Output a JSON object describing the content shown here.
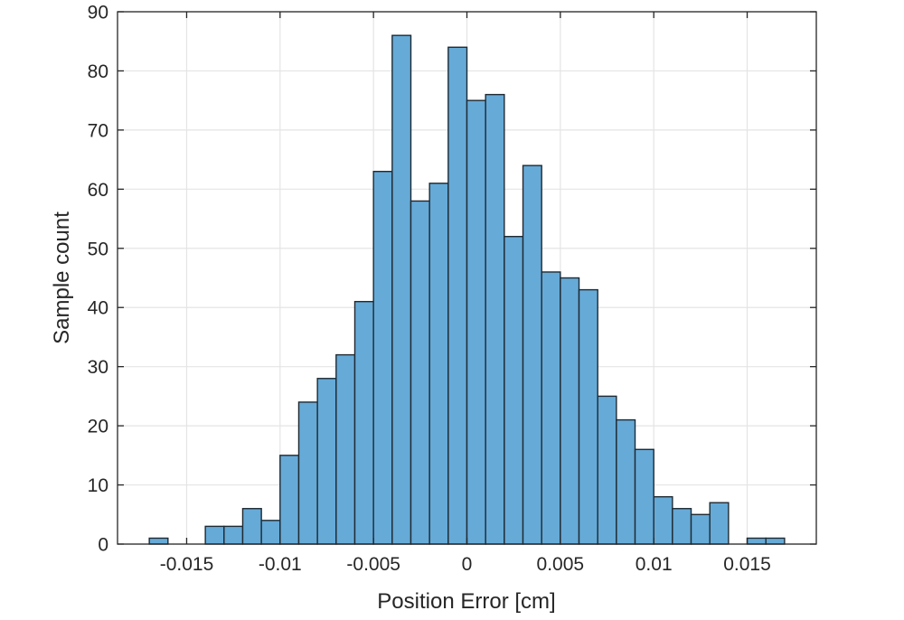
{
  "figure": {
    "background": "#ffffff"
  },
  "chart_data": {
    "type": "bar",
    "subtype": "histogram",
    "title": "",
    "xlabel": "Position Error [cm]",
    "ylabel": "Sample count",
    "bin_width": 0.001,
    "bin_edges": [
      -0.017,
      -0.016,
      -0.015,
      -0.014,
      -0.013,
      -0.012,
      -0.011,
      -0.01,
      -0.009,
      -0.008,
      -0.007,
      -0.006,
      -0.005,
      -0.004,
      -0.003,
      -0.002,
      -0.001,
      0,
      0.001,
      0.002,
      0.003,
      0.004,
      0.005,
      0.006,
      0.007,
      0.008,
      0.009,
      0.01,
      0.011,
      0.012,
      0.013,
      0.014,
      0.015,
      0.016,
      0.017
    ],
    "values": [
      1,
      0,
      0,
      3,
      3,
      6,
      4,
      15,
      24,
      28,
      32,
      41,
      63,
      86,
      58,
      61,
      84,
      75,
      76,
      52,
      64,
      46,
      45,
      43,
      25,
      21,
      16,
      8,
      6,
      5,
      7,
      0,
      1,
      1
    ],
    "xlim": [
      -0.0187,
      0.0187
    ],
    "ylim": [
      0,
      90
    ],
    "xticks": [
      -0.015,
      -0.01,
      -0.005,
      0,
      0.005,
      0.01,
      0.015
    ],
    "xtick_labels": [
      "-0.015",
      "-0.01",
      "-0.005",
      "0",
      "0.005",
      "0.01",
      "0.015"
    ],
    "yticks": [
      0,
      10,
      20,
      30,
      40,
      50,
      60,
      70,
      80,
      90
    ],
    "ytick_labels": [
      "0",
      "10",
      "20",
      "30",
      "40",
      "50",
      "60",
      "70",
      "80",
      "90"
    ],
    "grid": true,
    "legend": false,
    "colors": {
      "bar_fill": "#66AAD7",
      "bar_edge": "#1E2A33",
      "grid": "#E4E4E4",
      "axis": "#262626",
      "text": "#262626",
      "background": "#FFFFFF"
    }
  }
}
